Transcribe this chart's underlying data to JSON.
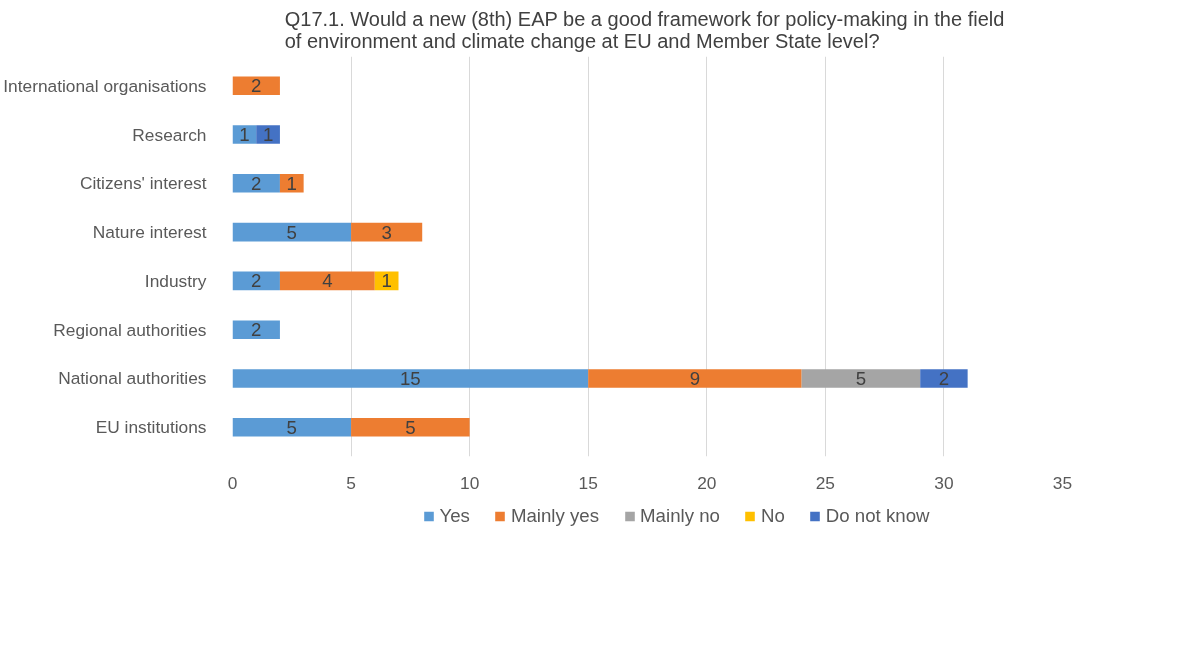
{
  "chart_data": {
    "type": "bar",
    "orientation": "horizontal",
    "stacked": true,
    "title": "Q17.1.  Would a new (8th) EAP be a good framework for policy-making in the field\nof environment and climate change at EU and Member State level?",
    "categories": [
      "International organisations",
      "Research",
      "Citizens' interest",
      "Nature interest",
      "Industry",
      "Regional authorities",
      "National authorities",
      "EU institutions"
    ],
    "series": [
      {
        "name": "Yes",
        "color": "#5b9bd5",
        "values": [
          null,
          1,
          2,
          5,
          2,
          2,
          15,
          5
        ]
      },
      {
        "name": "Mainly yes",
        "color": "#ed7d31",
        "values": [
          2,
          null,
          1,
          3,
          4,
          null,
          9,
          5
        ]
      },
      {
        "name": "Mainly no",
        "color": "#a5a5a5",
        "values": [
          null,
          null,
          null,
          null,
          null,
          null,
          5,
          null
        ]
      },
      {
        "name": "No",
        "color": "#ffc000",
        "values": [
          null,
          null,
          null,
          null,
          1,
          null,
          null,
          null
        ]
      },
      {
        "name": "Do not know",
        "color": "#4472c4",
        "values": [
          null,
          1,
          null,
          null,
          null,
          null,
          2,
          null
        ]
      }
    ],
    "xlim": [
      0,
      35
    ],
    "xticks": [
      0,
      5,
      10,
      15,
      20,
      25,
      30,
      35
    ],
    "grid": "x",
    "legend": "bottom",
    "data_labels": true
  }
}
